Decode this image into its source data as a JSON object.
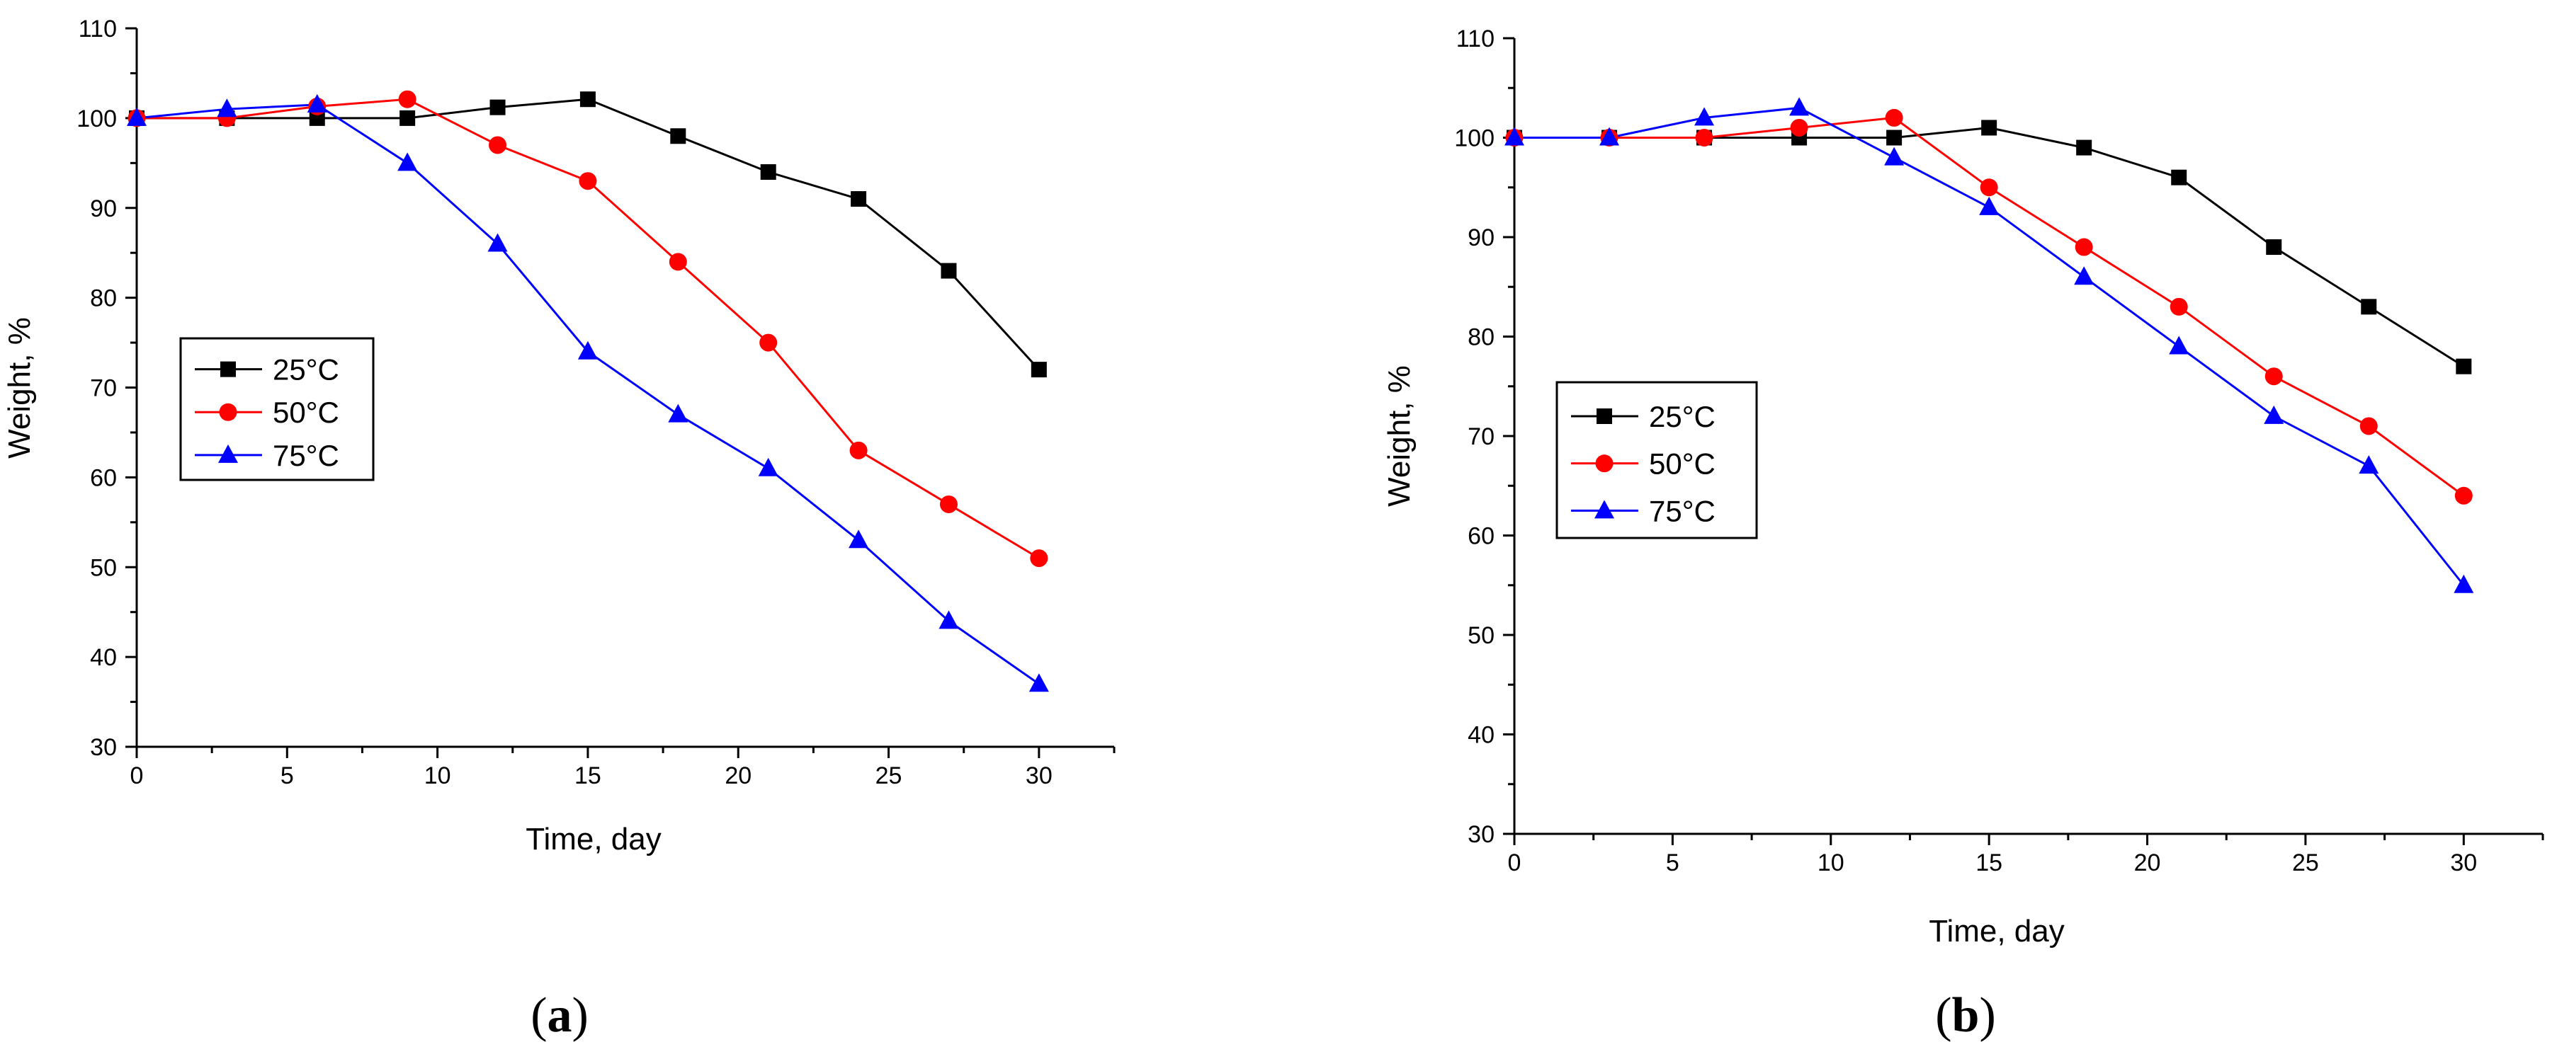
{
  "chart_data": [
    {
      "type": "line",
      "panel_label": "a",
      "title": "",
      "xlabel": "Time, day",
      "ylabel": "Weight, %",
      "xlim": [
        0,
        32.5
      ],
      "ylim": [
        30,
        110
      ],
      "xticks": [
        0,
        5,
        10,
        15,
        20,
        25,
        30
      ],
      "yticks": [
        30,
        40,
        50,
        60,
        70,
        80,
        90,
        100,
        110
      ],
      "legend_position": "center-left",
      "x": [
        0,
        3,
        6,
        9,
        12,
        15,
        18,
        21,
        24,
        27,
        30
      ],
      "series": [
        {
          "name": "25°C",
          "color": "#000000",
          "marker": "square",
          "values": [
            100,
            100,
            100,
            100,
            101.2,
            102.1,
            98,
            94,
            91,
            83,
            72
          ]
        },
        {
          "name": "50°C",
          "color": "#ff0000",
          "marker": "circle",
          "values": [
            100,
            100,
            101.3,
            102.1,
            97,
            93,
            84,
            75,
            63,
            57,
            51
          ]
        },
        {
          "name": "75°C",
          "color": "#0000ff",
          "marker": "triangle",
          "values": [
            100,
            101,
            101.5,
            95,
            86,
            74,
            67,
            61,
            53,
            44,
            37
          ]
        }
      ]
    },
    {
      "type": "line",
      "panel_label": "b",
      "title": "",
      "xlabel": "Time, day",
      "ylabel": "Weight, %",
      "xlim": [
        0,
        32.5
      ],
      "ylim": [
        30,
        110
      ],
      "xticks": [
        0,
        5,
        10,
        15,
        20,
        25,
        30
      ],
      "yticks": [
        30,
        40,
        50,
        60,
        70,
        80,
        90,
        100,
        110
      ],
      "legend_position": "center-left",
      "x": [
        0,
        3,
        6,
        9,
        12,
        15,
        18,
        21,
        24,
        27,
        30
      ],
      "series": [
        {
          "name": "25°C",
          "color": "#000000",
          "marker": "square",
          "values": [
            100,
            100,
            100,
            100,
            100,
            101,
            99,
            96,
            89,
            83,
            77
          ]
        },
        {
          "name": "50°C",
          "color": "#ff0000",
          "marker": "circle",
          "values": [
            100,
            100,
            100,
            101,
            102,
            95,
            89,
            83,
            76,
            71,
            64
          ]
        },
        {
          "name": "75°C",
          "color": "#0000ff",
          "marker": "triangle",
          "values": [
            100,
            100,
            102,
            103,
            98,
            93,
            86,
            79,
            72,
            67,
            55
          ]
        }
      ]
    }
  ]
}
